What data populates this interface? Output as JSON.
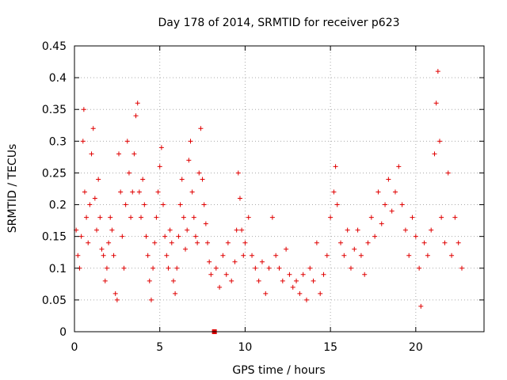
{
  "chart_data": {
    "type": "scatter",
    "title": "Day 178 of 2014, SRMTID for receiver p623",
    "xlabel": "GPS time / hours",
    "ylabel": "SRMTID / TECUs",
    "xlim": [
      0,
      24
    ],
    "ylim": [
      0,
      0.45
    ],
    "x_ticks": [
      0,
      5,
      10,
      15,
      20
    ],
    "y_ticks": [
      0,
      0.05,
      0.1,
      0.15,
      0.2,
      0.25,
      0.3,
      0.35,
      0.4,
      0.45
    ],
    "x_tick_labels": [
      "0",
      "5",
      "10",
      "15",
      "20"
    ],
    "y_tick_labels": [
      "0",
      "0.05",
      "0.1",
      "0.15",
      "0.2",
      "0.25",
      "0.3",
      "0.35",
      "0.4",
      "0.45"
    ],
    "grid": true,
    "marker": "+",
    "color": "#e00000",
    "series": [
      {
        "name": "SRMTID",
        "points": [
          [
            0.1,
            0.16
          ],
          [
            0.2,
            0.12
          ],
          [
            0.3,
            0.1
          ],
          [
            0.4,
            0.15
          ],
          [
            0.5,
            0.3
          ],
          [
            0.55,
            0.35
          ],
          [
            0.6,
            0.22
          ],
          [
            0.7,
            0.18
          ],
          [
            0.8,
            0.14
          ],
          [
            0.9,
            0.2
          ],
          [
            1.0,
            0.28
          ],
          [
            1.1,
            0.32
          ],
          [
            1.2,
            0.21
          ],
          [
            1.3,
            0.16
          ],
          [
            1.4,
            0.24
          ],
          [
            1.5,
            0.18
          ],
          [
            1.6,
            0.13
          ],
          [
            1.7,
            0.12
          ],
          [
            1.8,
            0.08
          ],
          [
            1.9,
            0.1
          ],
          [
            2.0,
            0.14
          ],
          [
            2.1,
            0.18
          ],
          [
            2.2,
            0.16
          ],
          [
            2.3,
            0.12
          ],
          [
            2.4,
            0.06
          ],
          [
            2.5,
            0.05
          ],
          [
            2.6,
            0.28
          ],
          [
            2.7,
            0.22
          ],
          [
            2.8,
            0.15
          ],
          [
            2.9,
            0.1
          ],
          [
            3.0,
            0.2
          ],
          [
            3.1,
            0.3
          ],
          [
            3.2,
            0.25
          ],
          [
            3.3,
            0.18
          ],
          [
            3.4,
            0.22
          ],
          [
            3.5,
            0.28
          ],
          [
            3.6,
            0.34
          ],
          [
            3.7,
            0.36
          ],
          [
            3.8,
            0.22
          ],
          [
            3.9,
            0.18
          ],
          [
            4.0,
            0.24
          ],
          [
            4.1,
            0.2
          ],
          [
            4.2,
            0.15
          ],
          [
            4.3,
            0.12
          ],
          [
            4.4,
            0.08
          ],
          [
            4.5,
            0.05
          ],
          [
            4.6,
            0.1
          ],
          [
            4.7,
            0.14
          ],
          [
            4.8,
            0.18
          ],
          [
            4.9,
            0.22
          ],
          [
            5.0,
            0.26
          ],
          [
            5.1,
            0.29
          ],
          [
            5.2,
            0.2
          ],
          [
            5.3,
            0.15
          ],
          [
            5.4,
            0.12
          ],
          [
            5.5,
            0.1
          ],
          [
            5.6,
            0.16
          ],
          [
            5.7,
            0.14
          ],
          [
            5.8,
            0.08
          ],
          [
            5.9,
            0.06
          ],
          [
            6.0,
            0.1
          ],
          [
            6.1,
            0.15
          ],
          [
            6.2,
            0.2
          ],
          [
            6.3,
            0.24
          ],
          [
            6.4,
            0.18
          ],
          [
            6.5,
            0.13
          ],
          [
            6.6,
            0.16
          ],
          [
            6.7,
            0.27
          ],
          [
            6.8,
            0.3
          ],
          [
            6.9,
            0.22
          ],
          [
            7.0,
            0.18
          ],
          [
            7.1,
            0.15
          ],
          [
            7.2,
            0.14
          ],
          [
            7.3,
            0.25
          ],
          [
            7.4,
            0.32
          ],
          [
            7.5,
            0.24
          ],
          [
            7.6,
            0.2
          ],
          [
            7.7,
            0.17
          ],
          [
            7.8,
            0.14
          ],
          [
            7.9,
            0.11
          ],
          [
            8.0,
            0.09
          ],
          [
            8.3,
            0.1
          ],
          [
            8.5,
            0.07
          ],
          [
            8.7,
            0.12
          ],
          [
            8.9,
            0.09
          ],
          [
            9.0,
            0.14
          ],
          [
            9.2,
            0.08
          ],
          [
            9.4,
            0.11
          ],
          [
            9.5,
            0.16
          ],
          [
            9.6,
            0.25
          ],
          [
            9.7,
            0.21
          ],
          [
            9.8,
            0.16
          ],
          [
            9.9,
            0.12
          ],
          [
            10.0,
            0.14
          ],
          [
            10.2,
            0.18
          ],
          [
            10.4,
            0.12
          ],
          [
            10.6,
            0.1
          ],
          [
            10.8,
            0.08
          ],
          [
            11.0,
            0.11
          ],
          [
            11.2,
            0.06
          ],
          [
            11.4,
            0.1
          ],
          [
            11.6,
            0.18
          ],
          [
            11.8,
            0.12
          ],
          [
            12.0,
            0.1
          ],
          [
            12.2,
            0.08
          ],
          [
            12.4,
            0.13
          ],
          [
            12.6,
            0.09
          ],
          [
            12.8,
            0.07
          ],
          [
            13.0,
            0.08
          ],
          [
            13.2,
            0.06
          ],
          [
            13.4,
            0.09
          ],
          [
            13.6,
            0.05
          ],
          [
            13.8,
            0.1
          ],
          [
            14.0,
            0.08
          ],
          [
            14.2,
            0.14
          ],
          [
            14.4,
            0.06
          ],
          [
            14.6,
            0.09
          ],
          [
            14.8,
            0.12
          ],
          [
            15.0,
            0.18
          ],
          [
            15.2,
            0.22
          ],
          [
            15.3,
            0.26
          ],
          [
            15.4,
            0.2
          ],
          [
            15.6,
            0.14
          ],
          [
            15.8,
            0.12
          ],
          [
            16.0,
            0.16
          ],
          [
            16.2,
            0.1
          ],
          [
            16.4,
            0.13
          ],
          [
            16.6,
            0.16
          ],
          [
            16.8,
            0.12
          ],
          [
            17.0,
            0.09
          ],
          [
            17.2,
            0.14
          ],
          [
            17.4,
            0.18
          ],
          [
            17.6,
            0.15
          ],
          [
            17.8,
            0.22
          ],
          [
            18.0,
            0.17
          ],
          [
            18.2,
            0.2
          ],
          [
            18.4,
            0.24
          ],
          [
            18.6,
            0.19
          ],
          [
            18.8,
            0.22
          ],
          [
            19.0,
            0.26
          ],
          [
            19.2,
            0.2
          ],
          [
            19.4,
            0.16
          ],
          [
            19.6,
            0.12
          ],
          [
            19.8,
            0.18
          ],
          [
            20.0,
            0.15
          ],
          [
            20.2,
            0.1
          ],
          [
            20.3,
            0.04
          ],
          [
            20.5,
            0.14
          ],
          [
            20.7,
            0.12
          ],
          [
            20.9,
            0.16
          ],
          [
            21.1,
            0.28
          ],
          [
            21.2,
            0.36
          ],
          [
            21.3,
            0.41
          ],
          [
            21.4,
            0.3
          ],
          [
            21.5,
            0.18
          ],
          [
            21.7,
            0.14
          ],
          [
            21.9,
            0.25
          ],
          [
            22.1,
            0.12
          ],
          [
            22.3,
            0.18
          ],
          [
            22.5,
            0.14
          ],
          [
            22.7,
            0.1
          ]
        ]
      }
    ],
    "annotations": [
      {
        "type": "square_marker",
        "x": 8.2,
        "y": 0
      }
    ]
  }
}
